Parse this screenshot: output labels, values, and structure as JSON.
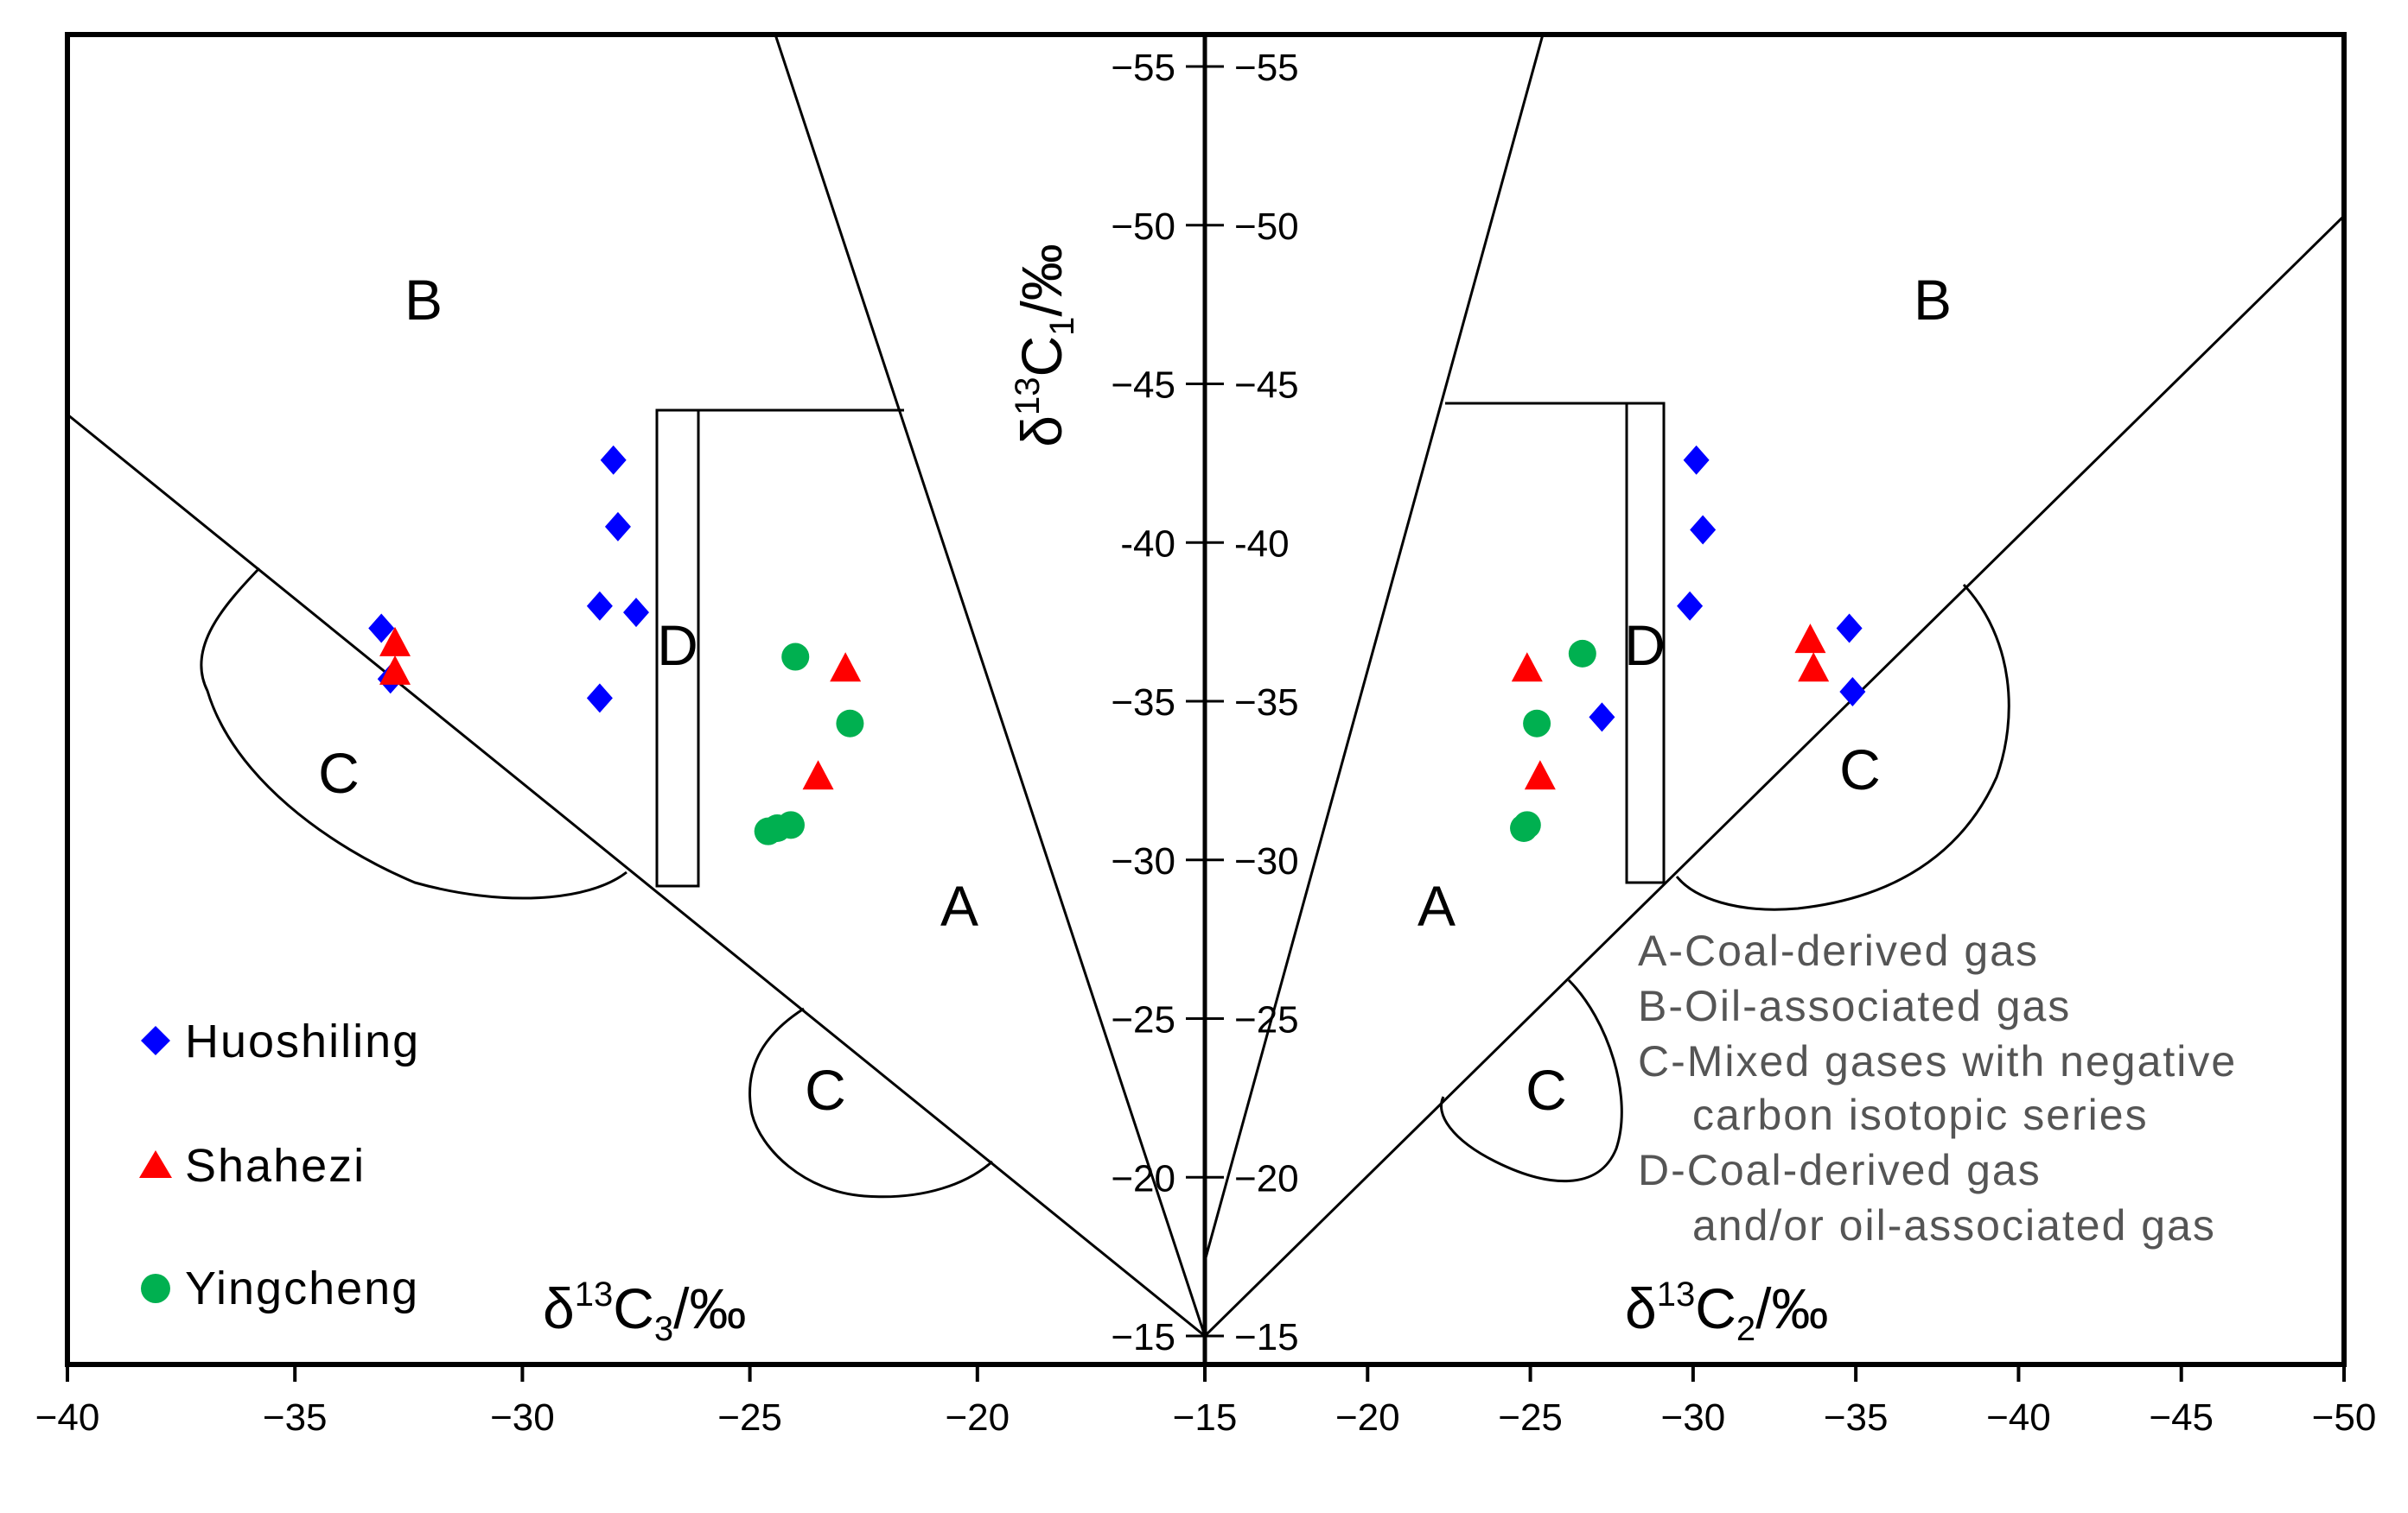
{
  "chart_data": {
    "type": "scatter",
    "title": "",
    "y_axis": {
      "label_parts": [
        "δ",
        "13",
        "C",
        "1",
        "/‰"
      ],
      "range": [
        -15,
        -55
      ],
      "ticks": [
        -55,
        -50,
        -45,
        -40,
        -35,
        -30,
        -25,
        -20,
        -15
      ],
      "tick_labels_right": [
        "−55",
        "−50",
        "−45",
        "-40",
        "−35",
        "−30",
        "−25",
        "−20",
        "−15"
      ],
      "tick_labels_left": [
        "−55",
        "−50",
        "−45",
        "-40",
        "−35",
        "−30",
        "−25",
        "−20",
        "−15"
      ]
    },
    "left_panel": {
      "xlabel_parts": [
        "δ",
        "13",
        "C",
        "3",
        "/‰"
      ],
      "xlim": [
        -40,
        -15
      ],
      "x_ticks": [
        -40,
        -35,
        -30,
        -25,
        -20,
        -15
      ],
      "x_tick_labels": [
        "−40",
        "−35",
        "−30",
        "−25",
        "−20",
        "−15"
      ],
      "series": [
        {
          "name": "Huoshiling",
          "marker": "diamond",
          "color": "#0000ff",
          "x": [
            -28.0,
            -27.9,
            -28.3,
            -27.5,
            -28.3,
            -33.1,
            -32.9
          ],
          "y": [
            -42.6,
            -40.5,
            -38.0,
            -37.8,
            -35.1,
            -37.3,
            -35.7
          ]
        },
        {
          "name": "Shahezi",
          "marker": "triangle",
          "color": "#ff0000",
          "x": [
            -32.8,
            -32.8,
            -22.9,
            -23.5
          ],
          "y": [
            -36.8,
            -35.9,
            -36.0,
            -32.6
          ]
        },
        {
          "name": "Yingcheng",
          "marker": "circle",
          "color": "#00b050",
          "x": [
            -24.0,
            -22.8,
            -24.6,
            -24.4,
            -24.1
          ],
          "y": [
            -36.4,
            -34.3,
            -30.9,
            -31.0,
            -31.1
          ]
        }
      ]
    },
    "right_panel": {
      "xlabel_parts": [
        "δ",
        "13",
        "C",
        "2",
        "/‰"
      ],
      "xlim": [
        -15,
        -50
      ],
      "x_ticks": [
        -20,
        -25,
        -30,
        -35,
        -40,
        -45,
        -50
      ],
      "x_tick_labels": [
        "−20",
        "−25",
        "−30",
        "−35",
        "−40",
        "−45",
        "−50"
      ],
      "series": [
        {
          "name": "Huoshiling",
          "marker": "diamond",
          "color": "#0000ff",
          "x": [
            -30.1,
            -30.3,
            -29.9,
            -27.2,
            -34.8,
            -34.9
          ],
          "y": [
            -42.6,
            -40.4,
            -38.0,
            -34.5,
            -37.3,
            -35.3
          ]
        },
        {
          "name": "Shahezi",
          "marker": "triangle",
          "color": "#ff0000",
          "x": [
            -24.9,
            -25.3,
            -33.6,
            -33.7
          ],
          "y": [
            -36.0,
            -32.6,
            -36.9,
            -36.0
          ]
        },
        {
          "name": "Yingcheng",
          "marker": "circle",
          "color": "#00b050",
          "x": [
            -26.6,
            -25.2,
            -24.8,
            -24.9
          ],
          "y": [
            -36.5,
            -34.3,
            -31.0,
            -31.1
          ]
        }
      ]
    },
    "zone_labels": {
      "A": "A",
      "B": "B",
      "C": "C",
      "D": "D"
    },
    "legend": {
      "placement": "bottom-left",
      "items": [
        {
          "label": "Huoshiling",
          "marker": "diamond",
          "color": "#0000ff"
        },
        {
          "label": "Shahezi",
          "marker": "triangle",
          "color": "#ff0000"
        },
        {
          "label": "Yingcheng",
          "marker": "circle",
          "color": "#00b050"
        }
      ]
    },
    "notes": [
      "A-Coal-derived gas",
      "B-Oil-associated gas",
      "C-Mixed gases with negative",
      "carbon isotopic series",
      "D-Coal-derived gas",
      "and/or oil-associated gas"
    ]
  }
}
